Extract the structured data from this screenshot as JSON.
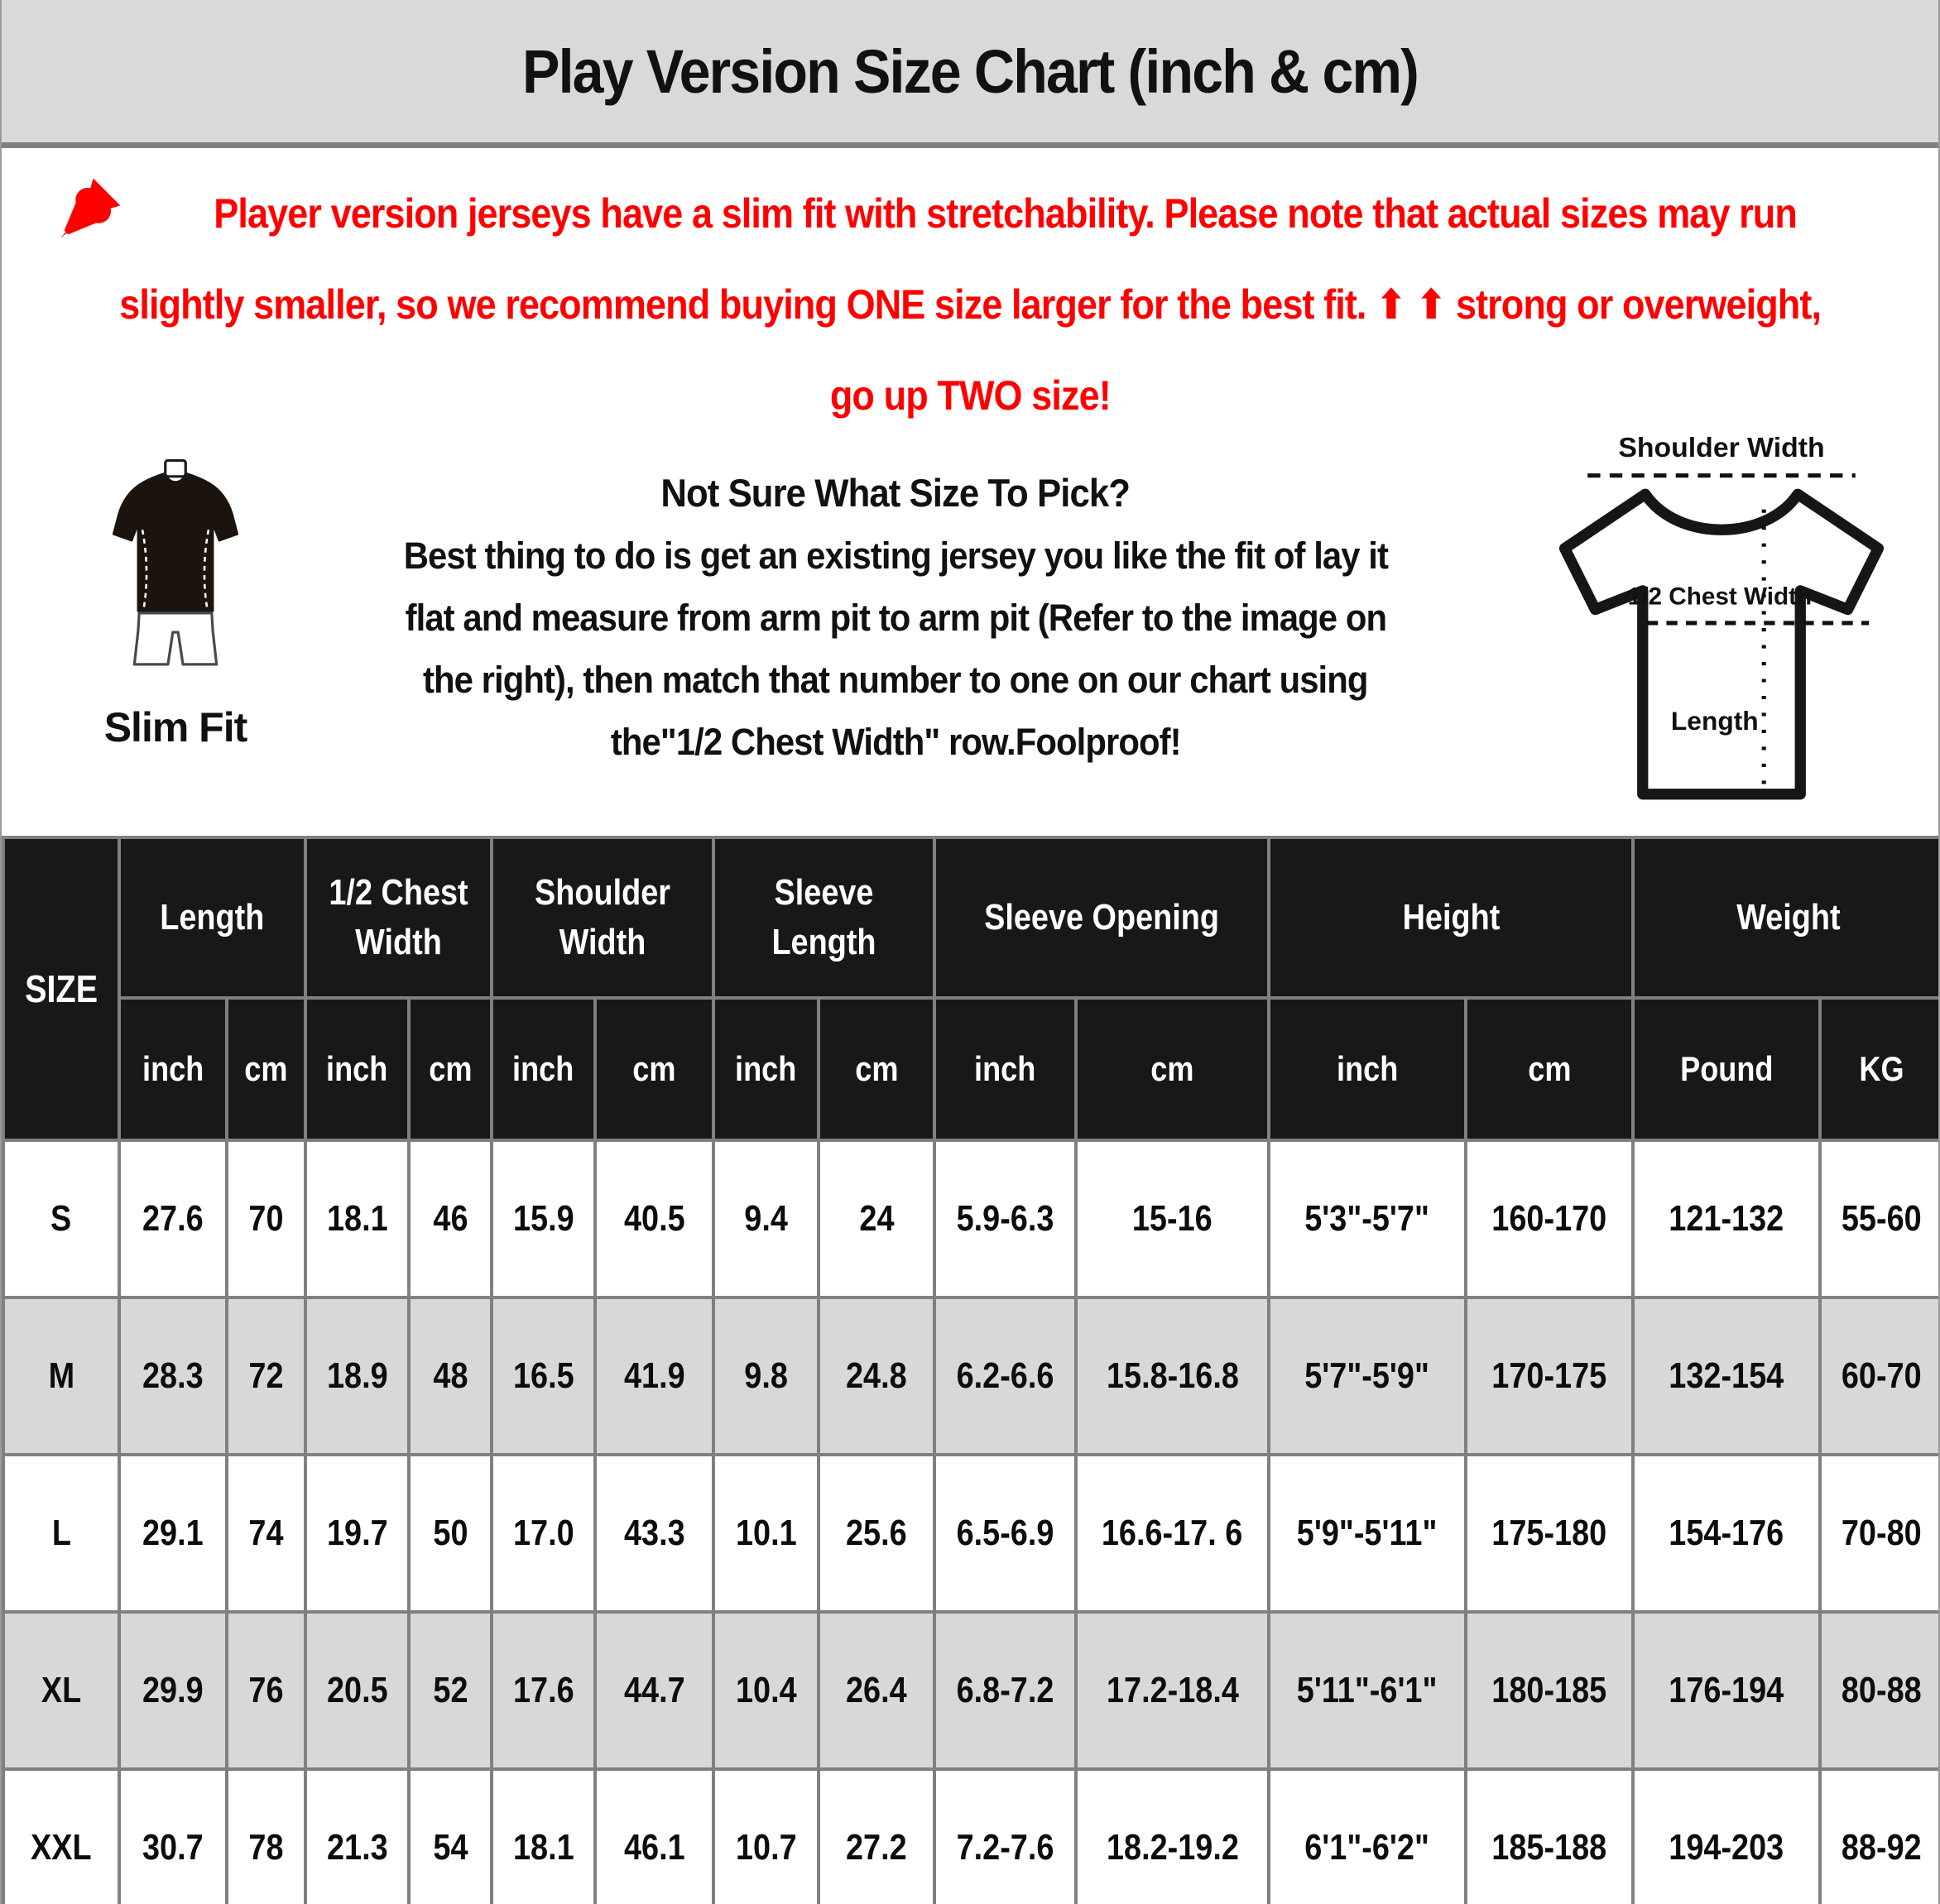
{
  "header": {
    "title": "Play Version Size Chart (inch & cm)"
  },
  "warning": {
    "pin_icon": "pushpin-icon",
    "lines": [
      "Player version jerseys have a slim fit with stretchability. Please note that actual sizes may run",
      "slightly smaller, so we recommend buying ONE size larger for the best fit. ⬆ ⬆ strong or overweight,",
      "go up TWO size!"
    ]
  },
  "fit": {
    "label": "Slim Fit"
  },
  "guide": {
    "heading": "Not Sure What Size To Pick?",
    "lines": [
      "Best thing to do is get an existing jersey you like the fit of lay it",
      "flat and measure from arm pit to arm pit (Refer to the image on",
      "the right), then match that number to one on our chart using",
      "the\"1/2 Chest Width\" row.Foolproof!"
    ]
  },
  "diagram": {
    "shoulder_label": "Shoulder Width",
    "chest_label": "1/2 Chest Width",
    "length_label": "Length"
  },
  "colors": {
    "accent_red": "#ff0000",
    "title_bar_bg": "#d9d9d9",
    "table_header_bg": "#181818",
    "grid_line": "#808080",
    "alt_row_bg": "#d8d8d8"
  },
  "size_table": {
    "corner": "SIZE",
    "groups": [
      {
        "label": "Length",
        "units": [
          "inch",
          "cm"
        ]
      },
      {
        "label": "1/2 Chest Width",
        "units": [
          "inch",
          "cm"
        ]
      },
      {
        "label": "Shoulder Width",
        "units": [
          "inch",
          "cm"
        ]
      },
      {
        "label": "Sleeve Length",
        "units": [
          "inch",
          "cm"
        ]
      },
      {
        "label": "Sleeve Opening",
        "units": [
          "inch",
          "cm"
        ]
      },
      {
        "label": "Height",
        "units": [
          "inch",
          "cm"
        ]
      },
      {
        "label": "Weight",
        "units": [
          "Pound",
          "KG"
        ]
      }
    ],
    "rows": [
      {
        "size": "S",
        "values": [
          "27.6",
          "70",
          "18.1",
          "46",
          "15.9",
          "40.5",
          "9.4",
          "24",
          "5.9-6.3",
          "15-16",
          "5'3\"-5'7\"",
          "160-170",
          "121-132",
          "55-60"
        ]
      },
      {
        "size": "M",
        "values": [
          "28.3",
          "72",
          "18.9",
          "48",
          "16.5",
          "41.9",
          "9.8",
          "24.8",
          "6.2-6.6",
          "15.8-16.8",
          "5'7\"-5'9\"",
          "170-175",
          "132-154",
          "60-70"
        ]
      },
      {
        "size": "L",
        "values": [
          "29.1",
          "74",
          "19.7",
          "50",
          "17.0",
          "43.3",
          "10.1",
          "25.6",
          "6.5-6.9",
          "16.6-17. 6",
          "5'9\"-5'11\"",
          "175-180",
          "154-176",
          "70-80"
        ]
      },
      {
        "size": "XL",
        "values": [
          "29.9",
          "76",
          "20.5",
          "52",
          "17.6",
          "44.7",
          "10.4",
          "26.4",
          "6.8-7.2",
          "17.2-18.4",
          "5'11\"-6'1\"",
          "180-185",
          "176-194",
          "80-88"
        ]
      },
      {
        "size": "XXL",
        "values": [
          "30.7",
          "78",
          "21.3",
          "54",
          "18.1",
          "46.1",
          "10.7",
          "27.2",
          "7.2-7.6",
          "18.2-19.2",
          "6'1\"-6'2\"",
          "185-188",
          "194-203",
          "88-92"
        ]
      }
    ]
  }
}
